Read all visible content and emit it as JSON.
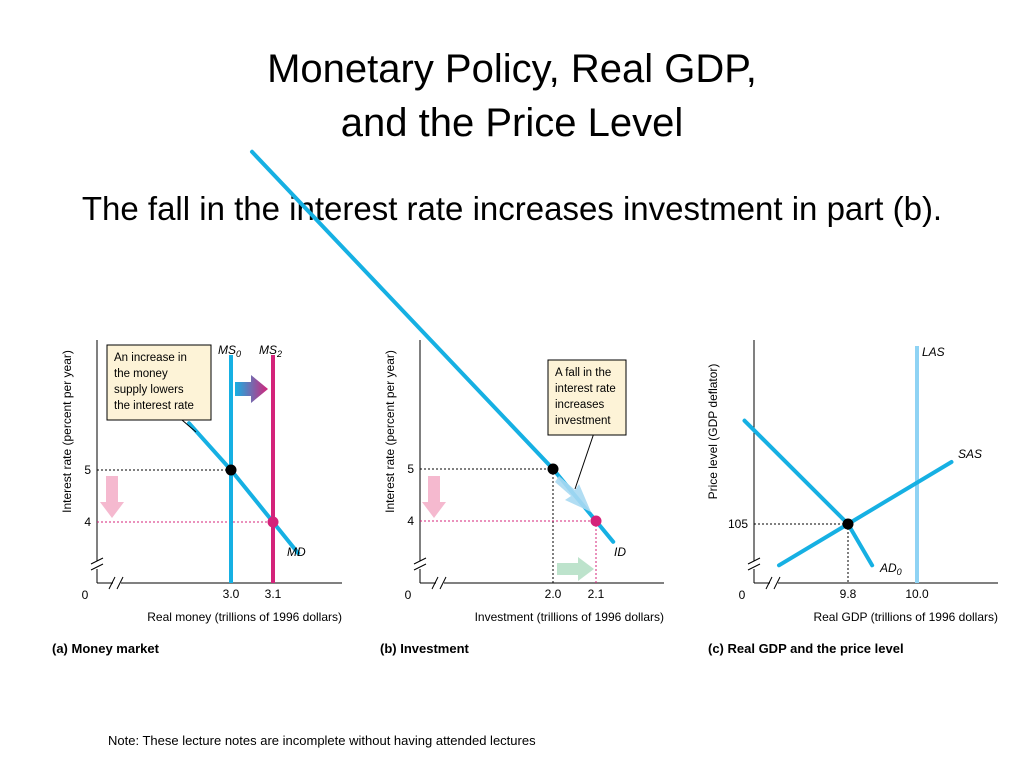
{
  "slide": {
    "title_line1": "Monetary Policy, Real GDP,",
    "title_line2": "and the Price Level",
    "subtitle": "The fall in the interest rate increases investment in part (b).",
    "footnote": "Note: These lecture notes are incomplete without having attended lectures"
  },
  "colors": {
    "curve": "#16b0e3",
    "new_supply": "#d4237a",
    "las": "#8fd3f4",
    "note_box_fill": "#fdf3d7",
    "down_arrow": "#f5b9cf",
    "right_arrow": "#bde3cc"
  },
  "chart_data": [
    {
      "type": "line",
      "panel": "a",
      "caption": "(a) Money market",
      "xlabel": "Real money (trillions of 1996 dollars)",
      "ylabel": "Interest rate (percent per year)",
      "origin_label": "0",
      "x_ticks": [
        "3.0",
        "3.1"
      ],
      "y_ticks": [
        "5",
        "4"
      ],
      "series": [
        {
          "name": "MS0",
          "label_main": "MS",
          "label_sub": "0",
          "kind": "vertical",
          "x": 3.0
        },
        {
          "name": "MS2",
          "label_main": "MS",
          "label_sub": "2",
          "kind": "vertical",
          "x": 3.1
        },
        {
          "name": "MD",
          "label_main": "MD",
          "label_sub": "",
          "kind": "line",
          "points": [
            [
              2.9,
              5.9
            ],
            [
              3.0,
              5
            ],
            [
              3.1,
              4
            ],
            [
              3.16,
              3.4
            ]
          ]
        }
      ],
      "equilibria": [
        {
          "x": 3.0,
          "y": 5,
          "state": "initial"
        },
        {
          "x": 3.1,
          "y": 4,
          "state": "new"
        }
      ],
      "annotation": [
        "An increase in",
        "the money",
        "supply lowers",
        "the interest rate"
      ],
      "axis_break": true
    },
    {
      "type": "line",
      "panel": "b",
      "caption": "(b) Investment",
      "xlabel": "Investment (trillions of 1996 dollars)",
      "ylabel": "Interest rate (percent per year)",
      "origin_label": "0",
      "x_ticks": [
        "2.0",
        "2.1"
      ],
      "y_ticks": [
        "5",
        "4"
      ],
      "series": [
        {
          "name": "ID",
          "label_main": "ID",
          "label_sub": "",
          "kind": "line",
          "points": [
            [
              1.3,
              11.1
            ],
            [
              2.0,
              5
            ],
            [
              2.1,
              4
            ],
            [
              2.14,
              3.6
            ]
          ]
        }
      ],
      "equilibria": [
        {
          "x": 2.0,
          "y": 5,
          "state": "initial"
        },
        {
          "x": 2.1,
          "y": 4,
          "state": "new"
        }
      ],
      "annotation": [
        "A fall in the",
        "interest rate",
        "increases",
        "investment"
      ],
      "axis_break": true
    },
    {
      "type": "line",
      "panel": "c",
      "caption": "(c) Real GDP and the price level",
      "xlabel": "Real GDP (trillions of 1996 dollars)",
      "ylabel": "Price level (GDP deflator)",
      "origin_label": "0",
      "x_ticks": [
        "9.8",
        "10.0"
      ],
      "y_ticks": [
        "105"
      ],
      "series": [
        {
          "name": "LAS",
          "label_main": "LAS",
          "label_sub": "",
          "kind": "vertical",
          "x": 10.0
        },
        {
          "name": "SAS",
          "label_main": "SAS",
          "label_sub": "",
          "kind": "line",
          "points": [
            [
              9.6,
              101
            ],
            [
              9.8,
              105
            ],
            [
              10.1,
              111
            ]
          ]
        },
        {
          "name": "AD0",
          "label_main": "AD",
          "label_sub": "0",
          "kind": "line",
          "points": [
            [
              9.5,
              115
            ],
            [
              9.8,
              105
            ],
            [
              9.87,
              101
            ]
          ]
        }
      ],
      "equilibria": [
        {
          "x": 9.8,
          "y": 105,
          "state": "initial"
        }
      ],
      "annotation": [],
      "axis_break": true
    }
  ]
}
